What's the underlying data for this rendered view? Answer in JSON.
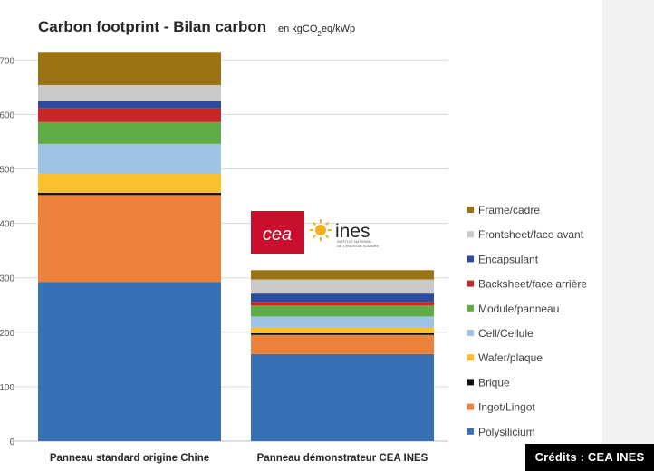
{
  "chart_data": {
    "type": "bar",
    "stacked": true,
    "title": "Carbon footprint - Bilan carbon",
    "unit": "en kgCO2eq/kWp",
    "unit_parts": {
      "pre": "en kgCO",
      "sub": "2",
      "post": "eq/kWp"
    },
    "categories": [
      "Panneau standard origine Chine",
      "Panneau démonstrateur CEA INES"
    ],
    "ylim": [
      0,
      800
    ],
    "yticks": [
      0,
      100,
      200,
      300,
      400,
      500,
      600,
      700
    ],
    "ytick_labels": [
      "0",
      "100",
      "200",
      "300",
      "400",
      "500",
      "600",
      "700"
    ],
    "grid": true,
    "legend_position": "right",
    "series": [
      {
        "name": "Polysilicium",
        "color": "#3670b5",
        "values": [
          292,
          160
        ]
      },
      {
        "name": "Ingot/Lingot",
        "color": "#ed823a",
        "values": [
          160,
          35
        ]
      },
      {
        "name": "Brique",
        "color": "#111111",
        "values": [
          4,
          3
        ]
      },
      {
        "name": "Wafer/plaque",
        "color": "#fbc02d",
        "values": [
          35,
          11
        ]
      },
      {
        "name": "Cell/Cellule",
        "color": "#9dc3e6",
        "values": [
          55,
          20
        ]
      },
      {
        "name": "Module/panneau",
        "color": "#5fac46",
        "values": [
          40,
          20
        ]
      },
      {
        "name": "Backsheet/face arrière",
        "color": "#c62828",
        "values": [
          25,
          7
        ]
      },
      {
        "name": "Encapsulant",
        "color": "#2e4a9e",
        "values": [
          13,
          15
        ]
      },
      {
        "name": "Frontsheet/face avant",
        "color": "#c9c9c9",
        "values": [
          30,
          26
        ]
      },
      {
        "name": "Frame/cadre",
        "color": "#9c7313",
        "values": [
          61,
          17
        ]
      }
    ]
  },
  "logos": {
    "cea": "cea",
    "ines": "ines",
    "ines_tagline_1": "INSTITUT NATIONAL",
    "ines_tagline_2": "DE L'ÉNERGIE SOLAIRE"
  },
  "credits": "Crédits : CEA INES",
  "colors": {
    "cea_red": "#c8102e",
    "ines_sun": "#f3b21b",
    "text": "#262626"
  }
}
